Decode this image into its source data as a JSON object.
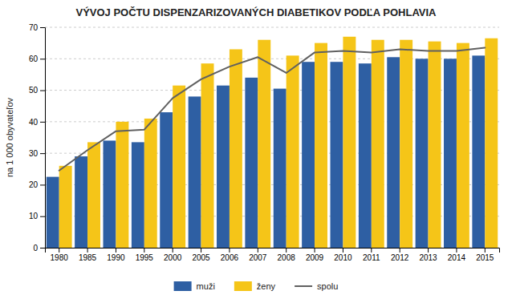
{
  "chart_data": {
    "type": "bar",
    "title": "VÝVOJ POČTU DISPENZARIZOVANÝCH DIABETIKOV PODĽA POHLAVIA",
    "ylabel": "na 1 000 obyvateľov",
    "categories": [
      "1980",
      "1985",
      "1990",
      "1995",
      "2000",
      "2005",
      "2006",
      "2007",
      "2008",
      "2009",
      "2010",
      "2011",
      "2012",
      "2013",
      "2014",
      "2015"
    ],
    "series": [
      {
        "name": "muži",
        "type": "bar",
        "color": "#2E5FA3",
        "values": [
          22.5,
          29.0,
          34.0,
          33.5,
          43.0,
          48.0,
          51.5,
          54.0,
          50.5,
          59.0,
          59.0,
          58.5,
          60.5,
          60.0,
          60.0,
          61.0
        ]
      },
      {
        "name": "ženy",
        "type": "bar",
        "color": "#F5C518",
        "values": [
          26.0,
          33.5,
          40.0,
          41.0,
          51.5,
          58.5,
          63.0,
          66.0,
          61.0,
          65.0,
          67.0,
          66.0,
          66.0,
          65.5,
          65.0,
          66.5
        ]
      },
      {
        "name": "spolu",
        "type": "line",
        "color": "#606060",
        "values": [
          24.5,
          31.0,
          37.0,
          37.5,
          47.5,
          53.5,
          57.5,
          60.5,
          55.5,
          62.0,
          62.5,
          62.0,
          63.0,
          62.5,
          62.5,
          63.5
        ]
      }
    ],
    "ylim": [
      0,
      70
    ],
    "yticks": [
      0,
      10,
      20,
      30,
      40,
      50,
      60,
      70
    ],
    "grid": true,
    "legend": "bottom"
  }
}
